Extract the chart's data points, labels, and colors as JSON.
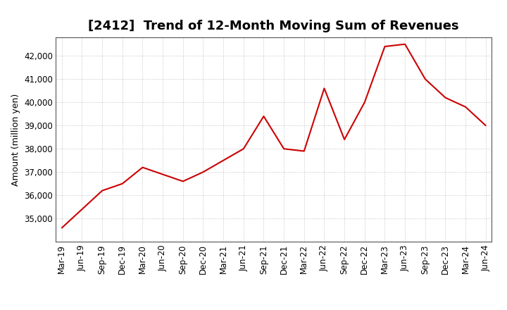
{
  "title": "[2412]  Trend of 12-Month Moving Sum of Revenues",
  "ylabel": "Amount (million yen)",
  "line_color": "#cc0000",
  "background_color": "#ffffff",
  "plot_bg_color": "#ffffff",
  "grid_color": "#999999",
  "x_labels": [
    "Mar-19",
    "Jun-19",
    "Sep-19",
    "Dec-19",
    "Mar-20",
    "Jun-20",
    "Sep-20",
    "Dec-20",
    "Mar-21",
    "Jun-21",
    "Sep-21",
    "Dec-21",
    "Mar-22",
    "Jun-22",
    "Sep-22",
    "Dec-22",
    "Mar-23",
    "Jun-23",
    "Sep-23",
    "Dec-23",
    "Mar-24",
    "Jun-24"
  ],
  "values": [
    34600,
    35400,
    36200,
    36500,
    37200,
    36900,
    36600,
    37000,
    37500,
    38000,
    39400,
    38000,
    37900,
    40600,
    38400,
    40000,
    42400,
    42500,
    41000,
    40200,
    39800,
    39000
  ],
  "ylim": [
    34000,
    42800
  ],
  "yticks": [
    35000,
    36000,
    37000,
    38000,
    39000,
    40000,
    41000,
    42000
  ],
  "title_fontsize": 13,
  "label_fontsize": 9,
  "tick_fontsize": 8.5
}
